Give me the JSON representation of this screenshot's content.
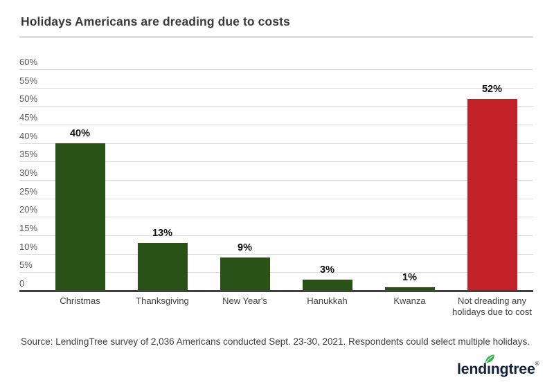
{
  "header": {
    "title": "Holidays Americans are dreading due to costs"
  },
  "chart_data": {
    "type": "bar",
    "title": "Holidays Americans are dreading due to costs",
    "categories": [
      "Christmas",
      "Thanksgiving",
      "New Year's",
      "Hanukkah",
      "Kwanza",
      "Not dreading any holidays due to cost"
    ],
    "values": [
      40,
      13,
      9,
      3,
      1,
      52
    ],
    "value_labels": [
      "40%",
      "13%",
      "9%",
      "3%",
      "1%",
      "52%"
    ],
    "bar_colors": [
      "#2a5116",
      "#2a5116",
      "#2a5116",
      "#2a5116",
      "#2a5116",
      "#c12127"
    ],
    "xlabel": "",
    "ylabel": "",
    "ylim": [
      0,
      60
    ],
    "ytick_labels": [
      "60%",
      "55%",
      "50%",
      "45%",
      "40%",
      "35%",
      "30%",
      "25%",
      "20%",
      "15%",
      "10%",
      "5%",
      "0"
    ],
    "grid": "horizontal-light-gray",
    "legend": "none",
    "colors": {
      "bar_green": "#2a5116",
      "bar_red": "#c12127",
      "gridline": "#dcdcdc",
      "axis_line": "#3f3f3f"
    }
  },
  "footer": {
    "source": "Source: LendingTree survey of 2,036 Americans conducted Sept. 23-30, 2021. Respondents could select multiple holidays."
  },
  "logo": {
    "text": "lendingtree",
    "part_pre": "lend",
    "part_i": "ı",
    "part_post": "ngtree",
    "registered": "®",
    "navy": "#16223c",
    "leaf_green": "#2fb34a"
  }
}
